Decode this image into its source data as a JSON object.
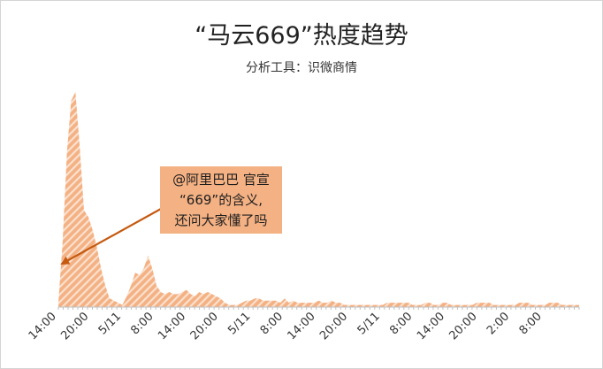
{
  "colors": {
    "area_fill": "#f4b183",
    "area_stripe": "#fbe1cf",
    "arrow": "#c55a11",
    "axis": "#bfbfbf"
  },
  "chart_data": {
    "type": "area",
    "title": "“马云669”热度趋势",
    "subtitle": "分析工具：识微商情",
    "xlabel": "",
    "ylabel": "",
    "grid": false,
    "legend": "none",
    "x_tick_labels": [
      "14:00",
      "20:00",
      "5/11",
      "8:00",
      "14:00",
      "20:00",
      "5/11",
      "8:00",
      "14:00",
      "20:00",
      "5/11",
      "8:00",
      "14:00",
      "20:00",
      "2:00",
      "8:00"
    ],
    "ylim": [
      0,
      100
    ],
    "values": [
      2,
      30,
      72,
      96,
      100,
      75,
      45,
      42,
      36,
      28,
      18,
      10,
      4,
      3,
      2,
      1,
      5,
      10,
      16,
      15,
      18,
      24,
      18,
      10,
      7,
      6,
      7,
      6,
      6,
      7,
      8,
      6,
      5,
      7,
      6,
      7,
      6,
      5,
      4,
      2,
      1,
      1,
      1,
      2,
      3,
      3,
      4,
      4,
      3,
      3,
      3,
      3,
      2,
      4,
      2,
      3,
      2,
      2,
      2,
      2,
      2,
      3,
      2,
      2,
      3,
      2,
      2,
      1,
      1,
      1,
      1,
      1,
      1,
      1,
      1,
      1,
      1,
      2,
      2,
      2,
      2,
      2,
      2,
      1,
      1,
      1,
      2,
      2,
      1,
      1,
      2,
      2,
      1,
      1,
      1,
      1,
      1,
      1,
      2,
      2,
      2,
      2,
      1,
      1,
      1,
      1,
      1,
      1,
      2,
      2,
      2,
      1,
      1,
      1,
      1,
      2,
      2,
      2,
      1,
      1,
      1,
      1,
      1
    ]
  },
  "annotation": {
    "text": "@阿里巴巴 官宣\n“669”的含义,\n还问大家懂了吗"
  }
}
